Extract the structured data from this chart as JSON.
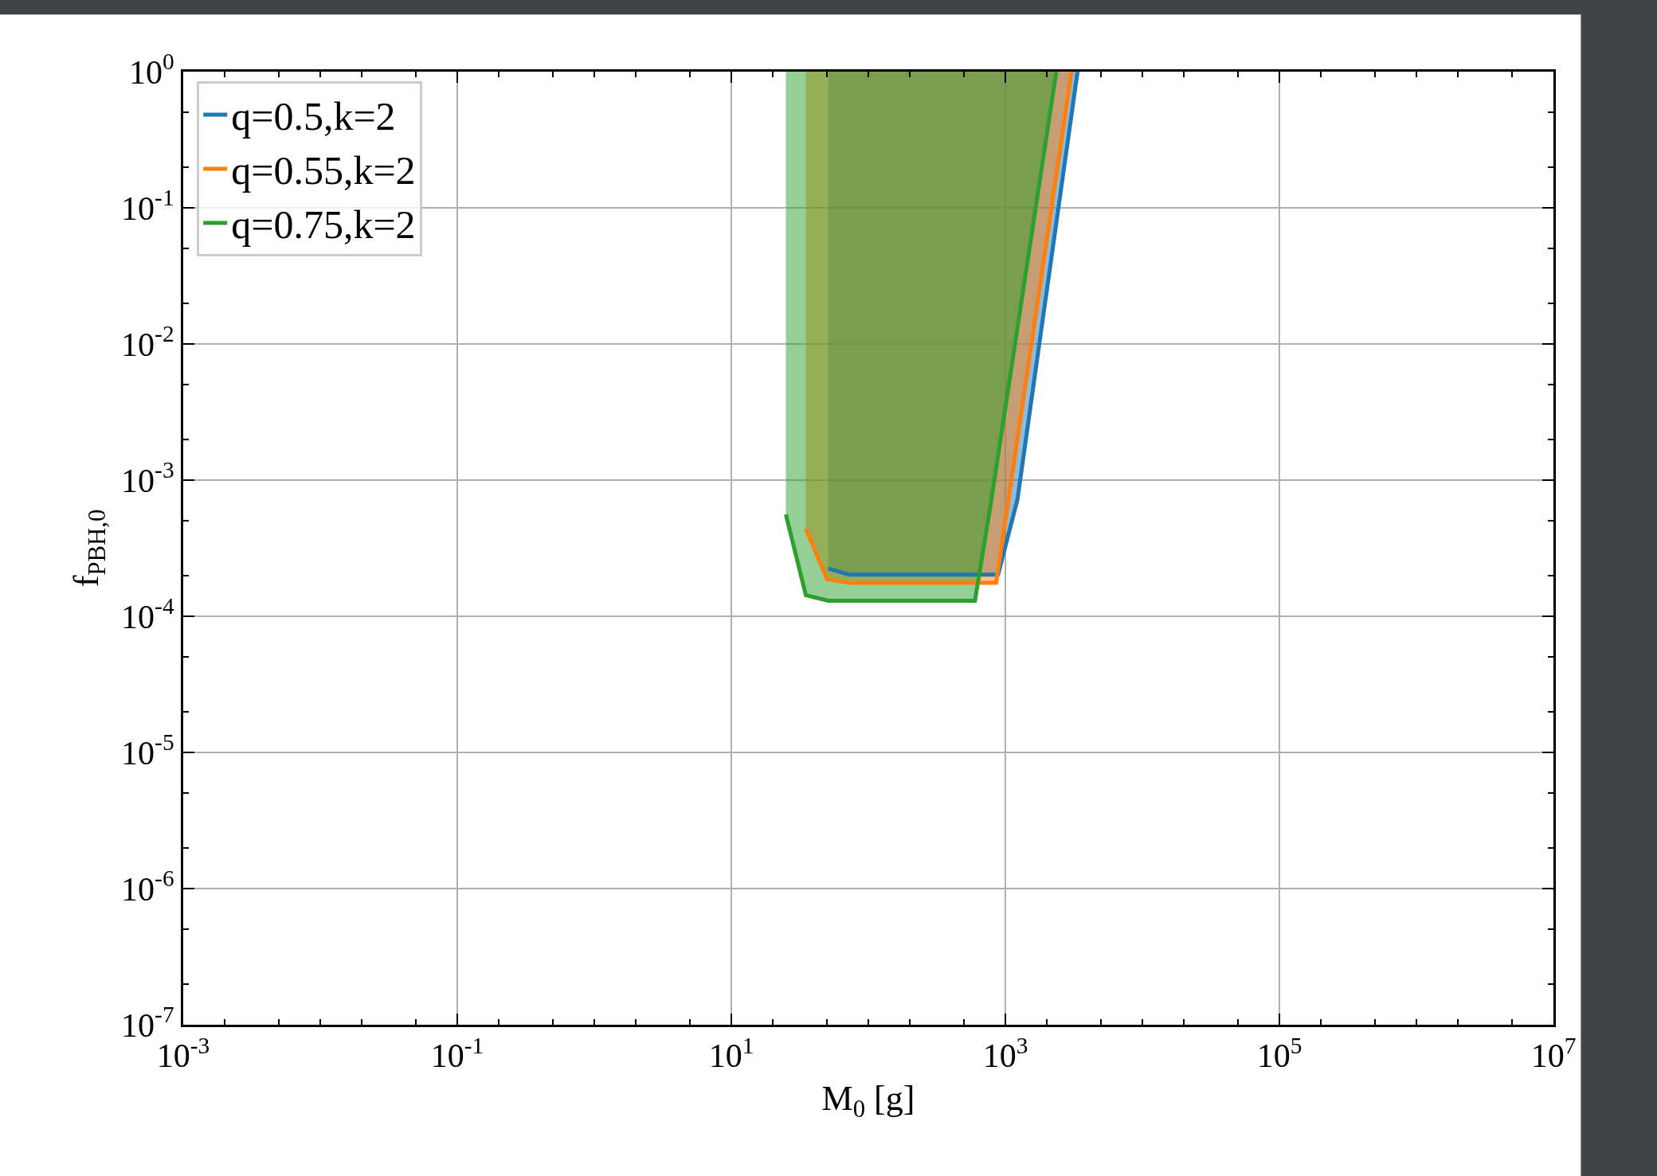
{
  "chart_data": {
    "type": "line",
    "xlabel": "M$_{0}$ [g]",
    "ylabel": "f$_{PBH,0}$",
    "log": "xy",
    "xlim": [
      0.001,
      10000000
    ],
    "ylim": [
      1e-07,
      1
    ],
    "xticks": [
      {
        "value": 0.001,
        "label": "10$^{-3}$"
      },
      {
        "value": 0.1,
        "label": "10$^{-1}$"
      },
      {
        "value": 10,
        "label": "10$^{1}$"
      },
      {
        "value": 1000,
        "label": "10$^{3}$"
      },
      {
        "value": 100000,
        "label": "10$^{5}$"
      },
      {
        "value": 10000000,
        "label": "10$^{7}$"
      }
    ],
    "yticks": [
      {
        "value": 1e-07,
        "label": "10$^{-7}$"
      },
      {
        "value": 1e-06,
        "label": "10$^{-6}$"
      },
      {
        "value": 1e-05,
        "label": "10$^{-5}$"
      },
      {
        "value": 0.0001,
        "label": "10$^{-4}$"
      },
      {
        "value": 0.001,
        "label": "10$^{-3}$"
      },
      {
        "value": 0.01,
        "label": "10$^{-2}$"
      },
      {
        "value": 0.1,
        "label": "10$^{-1}$"
      },
      {
        "value": 1,
        "label": "10$^{0}$"
      }
    ],
    "grid": true,
    "legend": "top left",
    "line_style": "solid",
    "series": [
      {
        "name": "q=0.5,k=2",
        "color": "#1f77b4",
        "x": [
          51,
          73,
          784,
          885,
          1225,
          3365
        ],
        "values": [
          0.000224,
          0.000202,
          0.000202,
          0.000202,
          0.00072,
          1
        ]
      },
      {
        "name": "q=0.55,k=2",
        "color": "#ff7f0e",
        "x": [
          35,
          50,
          73,
          857,
          1054,
          3040
        ],
        "values": [
          0.00044,
          0.000187,
          0.000176,
          0.000176,
          0.00072,
          1
        ]
      },
      {
        "name": "q=0.75,k=2",
        "color": "#2ca02c",
        "x": [
          25,
          35,
          51,
          600,
          784,
          2355
        ],
        "values": [
          0.00056,
          0.000143,
          0.00013,
          0.00013,
          0.00068,
          1
        ]
      }
    ]
  }
}
